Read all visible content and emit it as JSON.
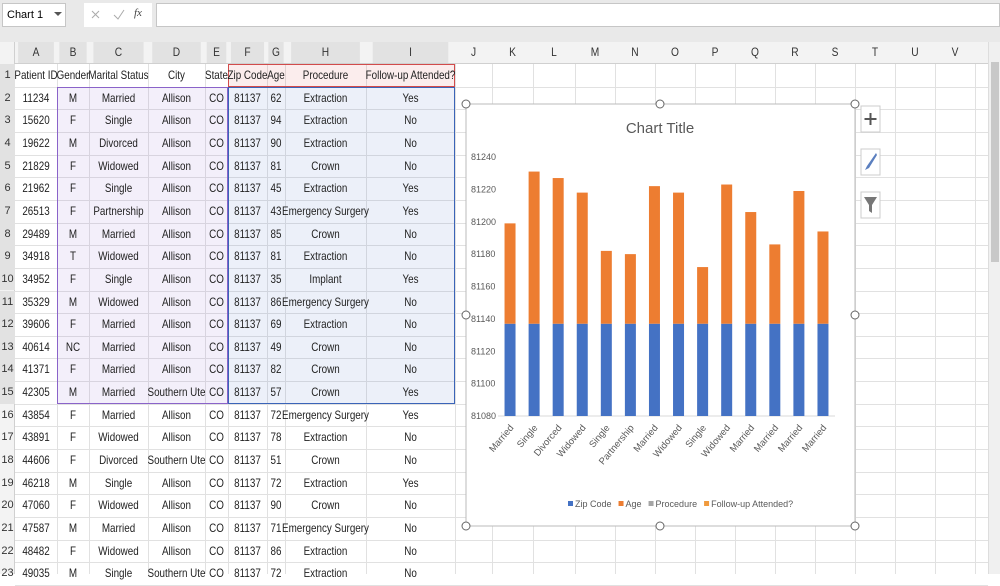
{
  "name_box": "Chart 1",
  "formula_label": "fx",
  "columns": [
    "A",
    "B",
    "C",
    "D",
    "E",
    "F",
    "G",
    "H",
    "I",
    "J",
    "K",
    "L",
    "M",
    "N",
    "O",
    "P",
    "Q",
    "R",
    "S",
    "T",
    "U",
    "V"
  ],
  "row_numbers": [
    1,
    2,
    3,
    4,
    5,
    6,
    7,
    8,
    9,
    10,
    11,
    12,
    13,
    14,
    15,
    16,
    17,
    18,
    19,
    20,
    21,
    22,
    23
  ],
  "table": {
    "header": [
      "Patient ID",
      "Gender",
      "Marital Status",
      "City",
      "State",
      "Zip Code",
      "Age",
      "Procedure",
      "Follow-up Attended?"
    ],
    "rows": [
      [
        11234,
        "M",
        "Married",
        "Allison",
        "CO",
        81137,
        62,
        "Extraction",
        "Yes"
      ],
      [
        15620,
        "F",
        "Single",
        "Allison",
        "CO",
        81137,
        94,
        "Extraction",
        "No"
      ],
      [
        19622,
        "M",
        "Divorced",
        "Allison",
        "CO",
        81137,
        90,
        "Extraction",
        "No"
      ],
      [
        21829,
        "F",
        "Widowed",
        "Allison",
        "CO",
        81137,
        81,
        "Crown",
        "No"
      ],
      [
        21962,
        "F",
        "Single",
        "Allison",
        "CO",
        81137,
        45,
        "Extraction",
        "Yes"
      ],
      [
        26513,
        "F",
        "Partnership",
        "Allison",
        "CO",
        81137,
        43,
        "Emergency Surgery",
        "Yes"
      ],
      [
        29489,
        "M",
        "Married",
        "Allison",
        "CO",
        81137,
        85,
        "Crown",
        "No"
      ],
      [
        34918,
        "T",
        "Widowed",
        "Allison",
        "CO",
        81137,
        81,
        "Extraction",
        "No"
      ],
      [
        34952,
        "F",
        "Single",
        "Allison",
        "CO",
        81137,
        35,
        "Implant",
        "Yes"
      ],
      [
        35329,
        "M",
        "Widowed",
        "Allison",
        "CO",
        81137,
        86,
        "Emergency Surgery",
        "No"
      ],
      [
        39606,
        "F",
        "Married",
        "Allison",
        "CO",
        81137,
        69,
        "Extraction",
        "No"
      ],
      [
        40614,
        "NC",
        "Married",
        "Allison",
        "CO",
        81137,
        49,
        "Crown",
        "No"
      ],
      [
        41371,
        "F",
        "Married",
        "Allison",
        "CO",
        81137,
        82,
        "Crown",
        "No"
      ],
      [
        42305,
        "M",
        "Married",
        "Southern Ute",
        "CO",
        81137,
        57,
        "Crown",
        "Yes"
      ],
      [
        43854,
        "F",
        "Married",
        "Allison",
        "CO",
        81137,
        72,
        "Emergency Surgery",
        "Yes"
      ],
      [
        43891,
        "F",
        "Widowed",
        "Allison",
        "CO",
        81137,
        78,
        "Extraction",
        "No"
      ],
      [
        44606,
        "F",
        "Divorced",
        "Southern Ute",
        "CO",
        81137,
        51,
        "Crown",
        "No"
      ],
      [
        46218,
        "M",
        "Single",
        "Allison",
        "CO",
        81137,
        72,
        "Extraction",
        "Yes"
      ],
      [
        47060,
        "F",
        "Widowed",
        "Allison",
        "CO",
        81137,
        90,
        "Crown",
        "No"
      ],
      [
        47587,
        "M",
        "Married",
        "Allison",
        "CO",
        81137,
        71,
        "Emergency Surgery",
        "No"
      ],
      [
        48482,
        "F",
        "Widowed",
        "Allison",
        "CO",
        81137,
        86,
        "Extraction",
        "No"
      ],
      [
        49035,
        "M",
        "Single",
        "Southern Ute",
        "CO",
        81137,
        72,
        "Extraction",
        "No"
      ]
    ]
  },
  "chart_data": {
    "type": "stacked_bar",
    "title": "Chart Title",
    "categories": [
      "Married",
      "Single",
      "Divorced",
      "Widowed",
      "Single",
      "Partnership",
      "Married",
      "Widowed",
      "Single",
      "Widowed",
      "Married",
      "Married",
      "Married",
      "Married"
    ],
    "series": [
      {
        "name": "Zip Code",
        "color": "#4472c4",
        "values": [
          81137,
          81137,
          81137,
          81137,
          81137,
          81137,
          81137,
          81137,
          81137,
          81137,
          81137,
          81137,
          81137,
          81137
        ]
      },
      {
        "name": "Age",
        "color": "#ed7d31",
        "values": [
          62,
          94,
          90,
          81,
          45,
          43,
          85,
          81,
          35,
          86,
          69,
          49,
          82,
          57
        ]
      },
      {
        "name": "Procedure",
        "color": "#a5a5a5",
        "values": [
          null,
          null,
          null,
          null,
          null,
          null,
          null,
          null,
          null,
          null,
          null,
          null,
          null,
          null
        ]
      },
      {
        "name": "Follow-up Attended?",
        "color": "#f09a3e",
        "values": [
          null,
          null,
          null,
          null,
          null,
          null,
          null,
          null,
          null,
          null,
          null,
          null,
          null,
          null
        ]
      }
    ],
    "ylim": [
      81080,
      81240
    ],
    "yticks": [
      81080,
      81100,
      81120,
      81140,
      81160,
      81180,
      81200,
      81220,
      81240
    ],
    "grid": false,
    "legend": "bottom"
  }
}
